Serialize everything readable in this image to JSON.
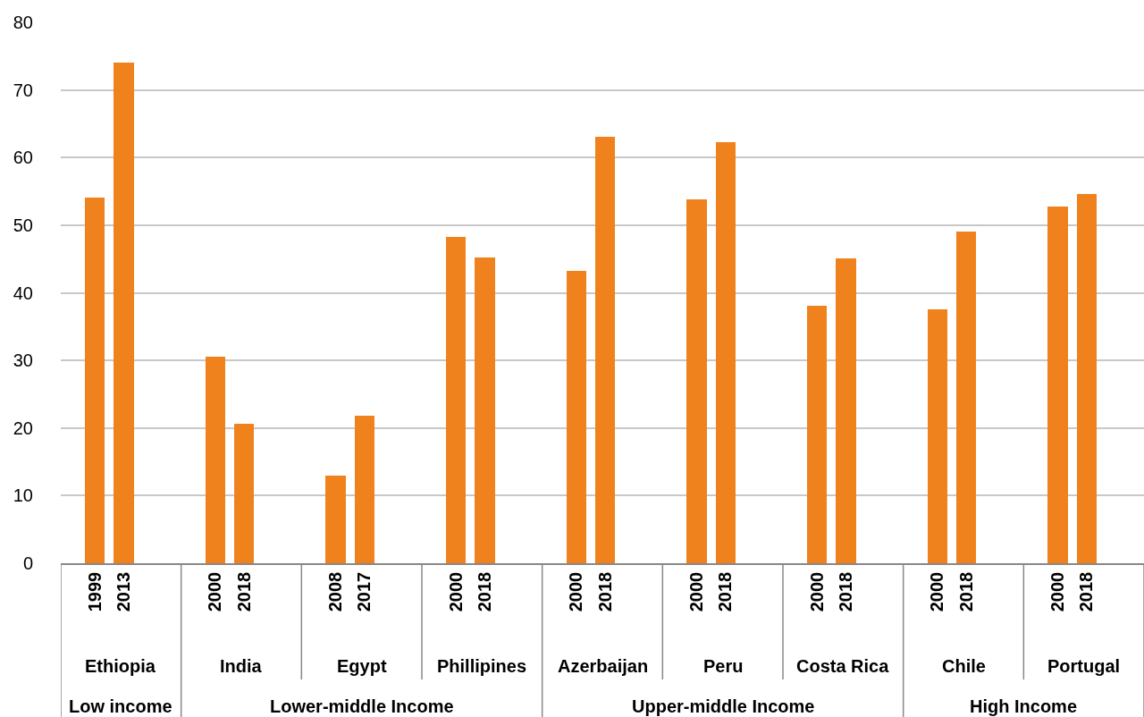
{
  "chart_data": {
    "type": "bar",
    "categories": [
      "1999",
      "2013",
      "2000",
      "2018",
      "2008",
      "2017",
      "2000",
      "2018",
      "2000",
      "2018",
      "2000",
      "2018",
      "2000",
      "2018",
      "2000",
      "2018",
      "2000",
      "2018"
    ],
    "values": [
      54.1,
      74.1,
      30.5,
      20.6,
      12.9,
      21.8,
      48.3,
      45.2,
      43.2,
      63.1,
      53.8,
      62.3,
      38.1,
      45.1,
      37.5,
      49.1,
      52.7,
      54.6
    ],
    "color": "#f0821e",
    "ylim": [
      0,
      80
    ],
    "yticks": [
      0,
      10,
      20,
      30,
      40,
      50,
      60,
      70,
      80
    ],
    "grid": "y",
    "annotations": [
      "Ethiopia",
      "India",
      "Egypt",
      "Phillipines",
      "Azerbaijan",
      "Peru",
      "Costa Rica",
      "Chile",
      "Portugal",
      "Low income",
      "Lower-middle Income",
      "Upper-middle Income",
      "High Income"
    ]
  }
}
